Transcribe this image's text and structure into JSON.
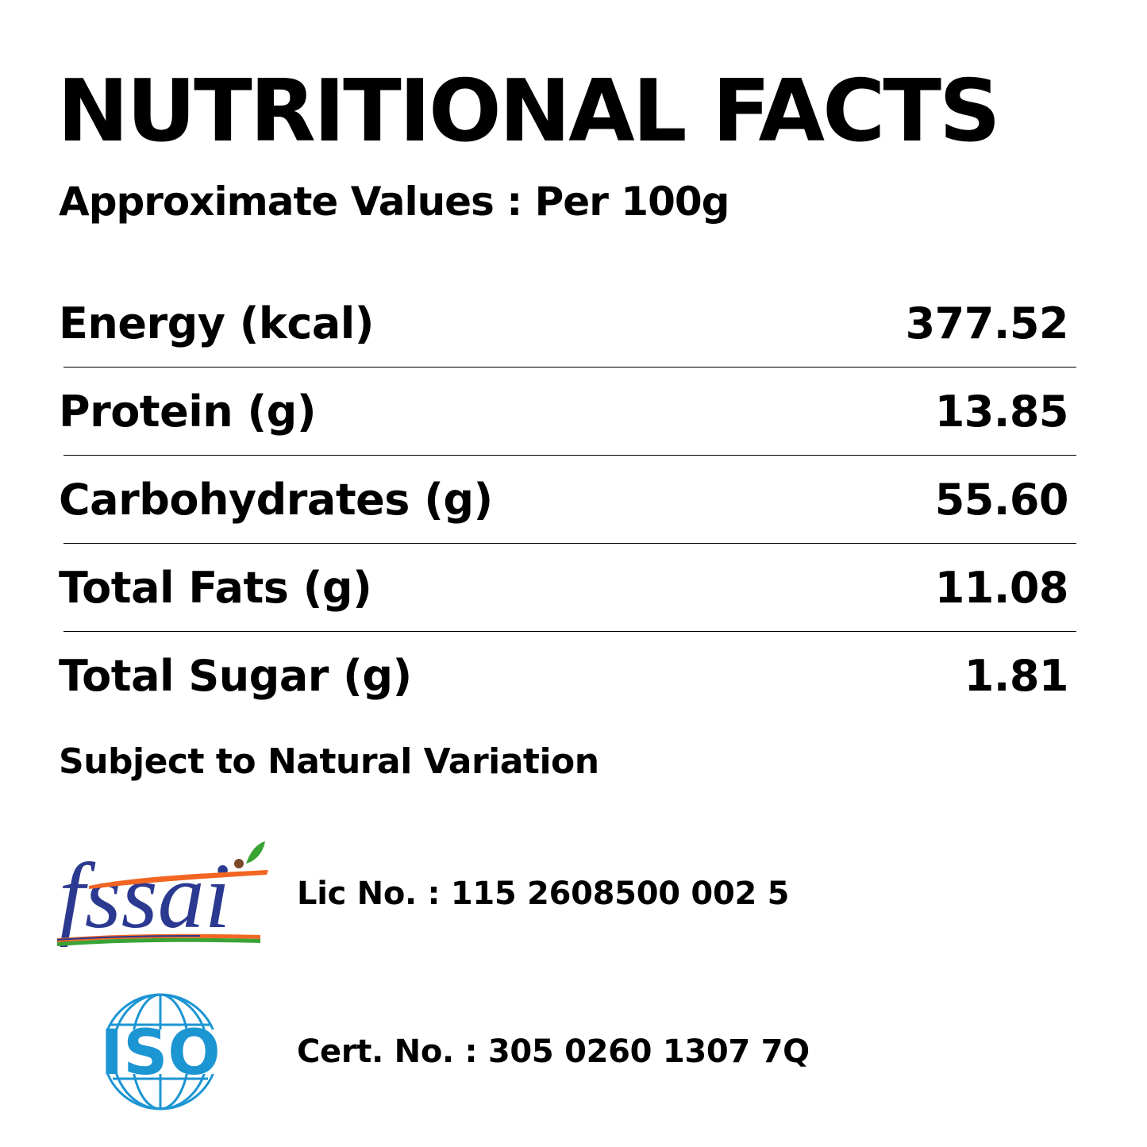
{
  "header": {
    "title": "NUTRITIONAL FACTS",
    "subtitle": "Approximate Values : Per 100g"
  },
  "nutrients": [
    {
      "label": "Energy (kcal)",
      "value": "377.52"
    },
    {
      "label": "Protein (g)",
      "value": "13.85"
    },
    {
      "label": "Carbohydrates (g)",
      "value": "55.60"
    },
    {
      "label": "Total Fats (g)",
      "value": "11.08"
    },
    {
      "label": "Total Sugar (g)",
      "value": "1.81"
    }
  ],
  "note": "Subject to Natural Variation",
  "certifications": {
    "fssai": {
      "logo_text": "fssai",
      "text": "Lic No. : 115 2608500 002 5",
      "logo_colors": {
        "text": "#2b3990",
        "accent": "#f26522",
        "leaf": "#3aa335"
      }
    },
    "iso": {
      "logo_text": "ISO",
      "text": "Cert. No. : 305 0260 1307 7Q",
      "logo_colors": {
        "text": "#1c95d3",
        "globe": "#1c95d3"
      }
    }
  }
}
